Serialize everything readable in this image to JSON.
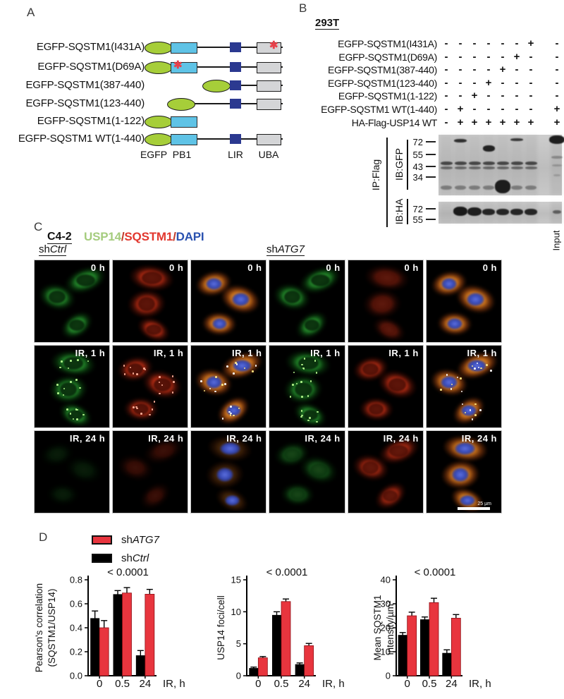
{
  "panelA": {
    "label": "A",
    "constructs": [
      {
        "name": "EGFP-SQSTM1(I431A)"
      },
      {
        "name": "EGFP-SQSTM1(D69A)"
      },
      {
        "name": "EGFP-SQSTM1(387-440)"
      },
      {
        "name": "EGFP-SQSTM1(123-440)"
      },
      {
        "name": "EGFP-SQSTM1(1-122)"
      },
      {
        "name": "EGFP-SQSTM1 WT(1-440)"
      }
    ],
    "domain_labels": [
      "EGFP",
      "PB1",
      "LIR",
      "UBA"
    ],
    "colors": {
      "egfp": "#a6ce39",
      "pb1": "#5fc3e6",
      "lir": "#2b3990",
      "uba": "#d4d5d7",
      "asterisk": "#e8404a"
    }
  },
  "panelB": {
    "label": "B",
    "cell_line": "293T",
    "rows": [
      {
        "label": "EGFP-SQSTM1(I431A)",
        "signs": [
          "-",
          "-",
          "-",
          "-",
          "-",
          "-",
          "+",
          "-"
        ]
      },
      {
        "label": "EGFP-SQSTM1(D69A)",
        "signs": [
          "-",
          "-",
          "-",
          "-",
          "-",
          "+",
          "-",
          "-"
        ]
      },
      {
        "label": "EGFP-SQSTM1(387-440)",
        "signs": [
          "-",
          "-",
          "-",
          "-",
          "+",
          "-",
          "-",
          "-"
        ]
      },
      {
        "label": "EGFP-SQSTM1(123-440)",
        "signs": [
          "-",
          "-",
          "-",
          "+",
          "-",
          "-",
          "-",
          "-"
        ]
      },
      {
        "label": "EGFP-SQSTM1(1-122)",
        "signs": [
          "-",
          "-",
          "+",
          "-",
          "-",
          "-",
          "-",
          "-"
        ]
      },
      {
        "label": "EGFP-SQSTM1 WT(1-440)",
        "signs": [
          "-",
          "+",
          "-",
          "-",
          "-",
          "-",
          "-",
          "+"
        ]
      },
      {
        "label": "HA-Flag-USP14 WT",
        "signs": [
          "-",
          "+",
          "+",
          "+",
          "+",
          "+",
          "+",
          "+"
        ]
      }
    ],
    "ip_label": "IP:Flag",
    "blots": [
      {
        "ib": "IB:GFP",
        "markers": [
          "72",
          "55",
          "43",
          "34"
        ]
      },
      {
        "ib": "IB:HA",
        "markers": [
          "72",
          "55"
        ]
      }
    ],
    "input_label": "Input"
  },
  "panelC": {
    "label": "C",
    "cell_line": "C4-2",
    "slash": "/",
    "slash_color": "#c03a28",
    "stains": [
      {
        "name": "USP14",
        "color": "#a5cc7e"
      },
      {
        "name": "SQSTM1",
        "color": "#e2372e"
      },
      {
        "name": "DAPI",
        "color": "#2a52b0"
      }
    ],
    "groups": [
      {
        "prefix": "sh",
        "gene": "Ctrl"
      },
      {
        "prefix": "sh",
        "gene": "ATG7"
      }
    ],
    "scale_bar": "25 µm",
    "grid": [
      [
        {
          "label": "0 h",
          "channel": "USP14"
        },
        {
          "label": "0 h",
          "channel": "SQSTM1"
        },
        {
          "label": "0 h",
          "channel": "Merge"
        },
        {
          "label": "0 h",
          "channel": "USP14"
        },
        {
          "label": "0 h",
          "channel": "SQSTM1"
        },
        {
          "label": "0 h",
          "channel": "Merge"
        }
      ],
      [
        {
          "label": "IR, 1 h",
          "channel": "USP14"
        },
        {
          "label": "IR, 1 h",
          "channel": "SQSTM1"
        },
        {
          "label": "IR, 1 h",
          "channel": "Merge"
        },
        {
          "label": "IR, 1 h",
          "channel": "USP14"
        },
        {
          "label": "IR, 1 h",
          "channel": "SQSTM1"
        },
        {
          "label": "IR, 1 h",
          "channel": "Merge"
        }
      ],
      [
        {
          "label": "IR, 24 h",
          "channel": "USP14"
        },
        {
          "label": "IR, 24 h",
          "channel": "SQSTM1"
        },
        {
          "label": "IR, 24 h",
          "channel": "Merge"
        },
        {
          "label": "IR, 24 h",
          "channel": "USP14"
        },
        {
          "label": "IR, 24 h",
          "channel": "SQSTM1"
        },
        {
          "label": "IR, 24 h",
          "channel": "Merge"
        }
      ]
    ]
  },
  "panelD": {
    "label": "D",
    "legend": [
      {
        "prefix": "sh",
        "gene": "ATG7",
        "color": "#e8353e"
      },
      {
        "prefix": "sh",
        "gene": "Ctrl",
        "color": "#000000"
      }
    ]
  },
  "chart_data": [
    {
      "type": "bar",
      "title": "< 0.0001",
      "ylabel_lines": [
        "Pearson's correlation",
        "(SQSTM1/USP14)"
      ],
      "ylim": [
        0,
        0.8
      ],
      "yticks": [
        "0.0",
        "0.2",
        "0.4",
        "0.6",
        "0.8"
      ],
      "categories": [
        "0",
        "0.5",
        "24"
      ],
      "xlabel": "IR, h",
      "grid": false,
      "series": [
        {
          "name": "shCtrl",
          "color": "#000000",
          "values": [
            0.48,
            0.68,
            0.17
          ],
          "errors": [
            0.06,
            0.03,
            0.04
          ]
        },
        {
          "name": "shATG7",
          "color": "#e8353e",
          "values": [
            0.4,
            0.69,
            0.68
          ],
          "errors": [
            0.06,
            0.045,
            0.04
          ]
        }
      ]
    },
    {
      "type": "bar",
      "title": "< 0.0001",
      "ylabel_lines": [
        "USP14 foci/cell"
      ],
      "ylim": [
        0,
        15
      ],
      "yticks": [
        "0",
        "5",
        "10",
        "15"
      ],
      "categories": [
        "0",
        "0.5",
        "24"
      ],
      "xlabel": "IR, h",
      "grid": false,
      "series": [
        {
          "name": "shCtrl",
          "color": "#000000",
          "values": [
            1.2,
            9.5,
            1.8
          ],
          "errors": [
            0.15,
            0.5,
            0.2
          ]
        },
        {
          "name": "shATG7",
          "color": "#e8353e",
          "values": [
            2.8,
            11.6,
            4.7
          ],
          "errors": [
            0.2,
            0.4,
            0.35
          ]
        }
      ]
    },
    {
      "type": "bar",
      "title": "< 0.0001",
      "ylabel_lines": [
        "Mean SQSTM1",
        "intensity/µm²"
      ],
      "ylim": [
        0,
        40
      ],
      "yticks": [
        "0",
        "10",
        "20",
        "30",
        "40"
      ],
      "categories": [
        "0",
        "0.5",
        "24"
      ],
      "xlabel": "IR, h",
      "grid": false,
      "series": [
        {
          "name": "shCtrl",
          "color": "#000000",
          "values": [
            17,
            23.5,
            9.5
          ],
          "errors": [
            1,
            1,
            1.3
          ]
        },
        {
          "name": "shATG7",
          "color": "#e8353e",
          "values": [
            25,
            30.5,
            24
          ],
          "errors": [
            1.5,
            1.8,
            1.5
          ]
        }
      ]
    }
  ]
}
